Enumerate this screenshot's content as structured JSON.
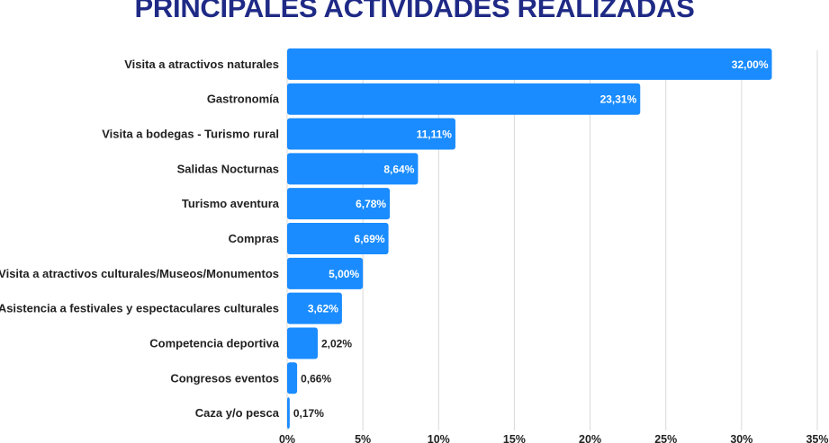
{
  "colors": {
    "bar": "#1a8cff",
    "title": "#1f2a86",
    "grid": "#d9d9d9",
    "text": "#222222"
  },
  "chart_data": {
    "type": "bar",
    "orientation": "horizontal",
    "title": "PRINCIPALES ACTIVIDADES REALIZADAS",
    "xlabel": "",
    "ylabel": "",
    "xlim": [
      0,
      35
    ],
    "grid": true,
    "categories": [
      "Visita a atractivos naturales",
      "Gastronomía",
      "Visita a bodegas - Turismo rural",
      "Salidas Nocturnas",
      "Turismo aventura",
      "Compras",
      "Visita a atractivos culturales/Museos/Monumentos",
      "Asistencia a festivales y espectaculares culturales",
      "Competencia deportiva",
      "Congresos eventos",
      "Caza y/o pesca"
    ],
    "values": [
      32.0,
      23.31,
      11.11,
      8.64,
      6.78,
      6.69,
      5.0,
      3.62,
      2.02,
      0.66,
      0.17
    ],
    "value_labels": [
      "32,00%",
      "23,31%",
      "11,11%",
      "8,64%",
      "6,78%",
      "6,69%",
      "5,00%",
      "3,62%",
      "2,02%",
      "0,66%",
      "0,17%"
    ],
    "ticks": [
      0,
      5,
      10,
      15,
      20,
      25,
      30,
      35
    ],
    "tick_labels": [
      "0%",
      "5%",
      "10%",
      "15%",
      "20%",
      "25%",
      "30%",
      "35%"
    ]
  }
}
